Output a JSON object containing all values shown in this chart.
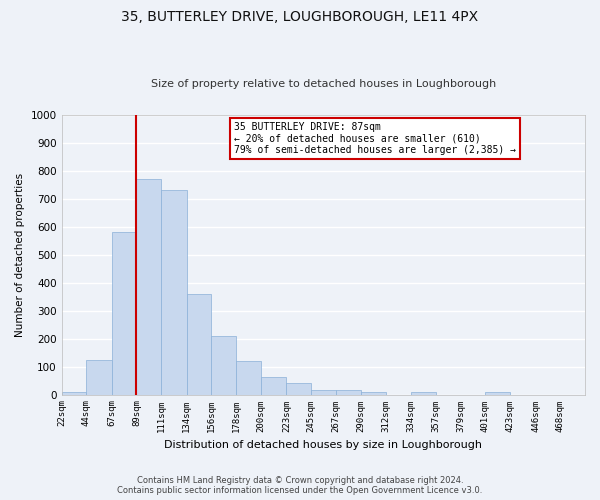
{
  "title": "35, BUTTERLEY DRIVE, LOUGHBOROUGH, LE11 4PX",
  "subtitle": "Size of property relative to detached houses in Loughborough",
  "xlabel": "Distribution of detached houses by size in Loughborough",
  "ylabel": "Number of detached properties",
  "bin_labels": [
    "22sqm",
    "44sqm",
    "67sqm",
    "89sqm",
    "111sqm",
    "134sqm",
    "156sqm",
    "178sqm",
    "200sqm",
    "223sqm",
    "245sqm",
    "267sqm",
    "290sqm",
    "312sqm",
    "334sqm",
    "357sqm",
    "379sqm",
    "401sqm",
    "423sqm",
    "446sqm",
    "468sqm"
  ],
  "bar_heights": [
    10,
    125,
    580,
    770,
    730,
    360,
    210,
    120,
    62,
    40,
    15,
    15,
    8,
    0,
    10,
    0,
    0,
    10,
    0,
    0,
    0
  ],
  "bar_color": "#c8d8ee",
  "bar_edge_color": "#8ab0d8",
  "vline_color": "#cc0000",
  "ylim": [
    0,
    1000
  ],
  "yticks": [
    0,
    100,
    200,
    300,
    400,
    500,
    600,
    700,
    800,
    900,
    1000
  ],
  "annotation_title": "35 BUTTERLEY DRIVE: 87sqm",
  "annotation_line1": "← 20% of detached houses are smaller (610)",
  "annotation_line2": "79% of semi-detached houses are larger (2,385) →",
  "annotation_box_color": "#ffffff",
  "annotation_border_color": "#cc0000",
  "footer1": "Contains HM Land Registry data © Crown copyright and database right 2024.",
  "footer2": "Contains public sector information licensed under the Open Government Licence v3.0.",
  "bg_color": "#eef2f8",
  "plot_bg_color": "#eef2f8",
  "grid_color": "#ffffff",
  "title_fontsize": 10,
  "subtitle_fontsize": 8,
  "bin_edges": [
    22,
    44,
    67,
    89,
    111,
    134,
    156,
    178,
    200,
    223,
    245,
    267,
    290,
    312,
    334,
    357,
    379,
    401,
    423,
    446,
    468,
    490
  ]
}
